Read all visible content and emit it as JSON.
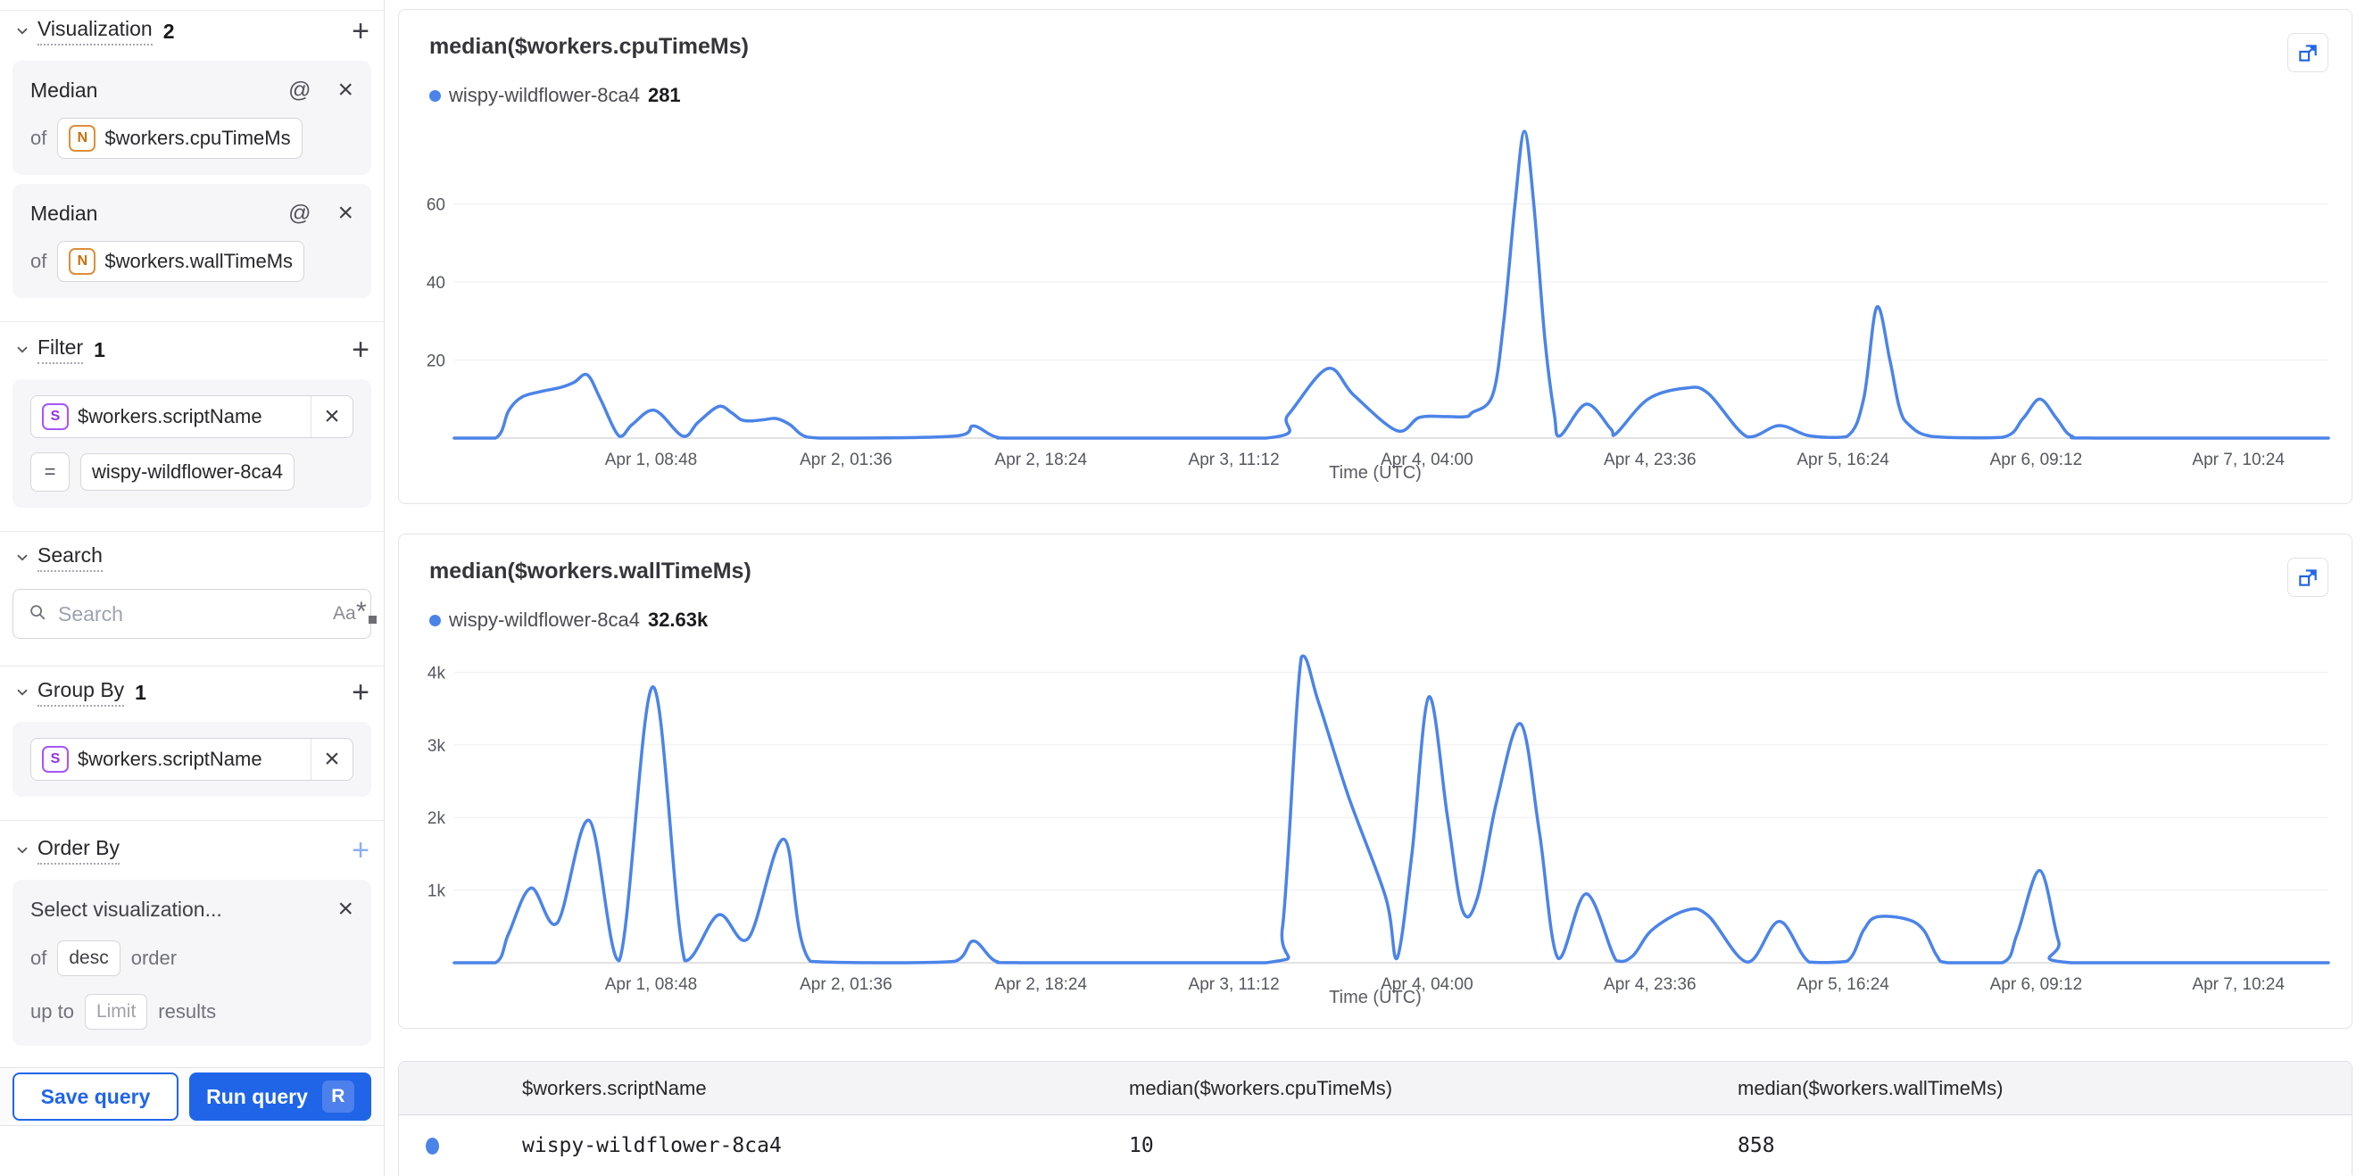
{
  "icons": {
    "plus": "+",
    "at": "@",
    "close": "×",
    "match_case": "Aa",
    "regex_star": "*"
  },
  "colors": {
    "accent_blue": "#2065e8",
    "series_blue": "#4b84e8"
  },
  "sidebar": {
    "visualization": {
      "title": "Visualization",
      "count": "2",
      "cards": [
        {
          "agg": "Median",
          "of": "of",
          "badge": "N",
          "field": "$workers.cpuTimeMs"
        },
        {
          "agg": "Median",
          "of": "of",
          "badge": "N",
          "field": "$workers.wallTimeMs"
        }
      ]
    },
    "filter": {
      "title": "Filter",
      "count": "1",
      "badge": "S",
      "field": "$workers.scriptName",
      "operator": "=",
      "value": "wispy-wildflower-8ca4"
    },
    "search": {
      "title": "Search",
      "placeholder": "Search"
    },
    "group_by": {
      "title": "Group By",
      "count": "1",
      "badge": "S",
      "field": "$workers.scriptName"
    },
    "order_by": {
      "title": "Order By",
      "placeholder": "Select visualization...",
      "of": "of",
      "direction": "desc",
      "order_word": "order",
      "up_to": "up to",
      "limit_placeholder": "Limit",
      "results_word": "results"
    },
    "footer": {
      "save": "Save query",
      "run": "Run query",
      "shortcut": "R"
    }
  },
  "chart_data": [
    {
      "type": "line",
      "title": "median($workers.cpuTimeMs)",
      "xlabel": "Time (UTC)",
      "legend": {
        "name": "wispy-wildflower-8ca4",
        "value": "281"
      },
      "color": "#4b84e8",
      "ylim": [
        0,
        80
      ],
      "y_ticks": [
        {
          "value": 20,
          "label": "20"
        },
        {
          "value": 40,
          "label": "40"
        },
        {
          "value": 60,
          "label": "60"
        }
      ],
      "x_ticks": [
        {
          "pos": 0.105,
          "label": "Apr 1, 08:48"
        },
        {
          "pos": 0.209,
          "label": "Apr 2, 01:36"
        },
        {
          "pos": 0.313,
          "label": "Apr 2, 18:24"
        },
        {
          "pos": 0.416,
          "label": "Apr 3, 11:12"
        },
        {
          "pos": 0.519,
          "label": "Apr 4, 04:00"
        },
        {
          "pos": 0.638,
          "label": "Apr 4, 23:36"
        },
        {
          "pos": 0.741,
          "label": "Apr 5, 16:24"
        },
        {
          "pos": 0.844,
          "label": "Apr 6, 09:12"
        },
        {
          "pos": 0.952,
          "label": "Apr 7, 10:24"
        }
      ],
      "points": [
        [
          0,
          0
        ],
        [
          0.022,
          0
        ],
        [
          0.029,
          7
        ],
        [
          0.036,
          10.5
        ],
        [
          0.046,
          11.9
        ],
        [
          0.057,
          13
        ],
        [
          0.064,
          14.3
        ],
        [
          0.071,
          16.2
        ],
        [
          0.078,
          10
        ],
        [
          0.088,
          0.5
        ],
        [
          0.095,
          3.5
        ],
        [
          0.107,
          7.1
        ],
        [
          0.122,
          0.5
        ],
        [
          0.13,
          4
        ],
        [
          0.141,
          8.1
        ],
        [
          0.148,
          6.5
        ],
        [
          0.153,
          4.7
        ],
        [
          0.158,
          4.4
        ],
        [
          0.165,
          4.7
        ],
        [
          0.172,
          5
        ],
        [
          0.179,
          3.5
        ],
        [
          0.188,
          0.3
        ],
        [
          0.206,
          0
        ],
        [
          0.267,
          0.5
        ],
        [
          0.277,
          3.1
        ],
        [
          0.289,
          0.3
        ],
        [
          0.305,
          0
        ],
        [
          0.433,
          0
        ],
        [
          0.445,
          6
        ],
        [
          0.466,
          17.8
        ],
        [
          0.48,
          11
        ],
        [
          0.503,
          1.9
        ],
        [
          0.515,
          5.3
        ],
        [
          0.529,
          5.5
        ],
        [
          0.54,
          5.5
        ],
        [
          0.543,
          6.5
        ],
        [
          0.554,
          11
        ],
        [
          0.56,
          30
        ],
        [
          0.566,
          60
        ],
        [
          0.571,
          78.6
        ],
        [
          0.576,
          60
        ],
        [
          0.582,
          25
        ],
        [
          0.587,
          6
        ],
        [
          0.59,
          0.6
        ],
        [
          0.604,
          8.7
        ],
        [
          0.617,
          2.4
        ],
        [
          0.62,
          1.2
        ],
        [
          0.637,
          10
        ],
        [
          0.657,
          12.8
        ],
        [
          0.669,
          11.5
        ],
        [
          0.69,
          0.3
        ],
        [
          0.707,
          3.2
        ],
        [
          0.723,
          0.6
        ],
        [
          0.743,
          0.4
        ],
        [
          0.752,
          10
        ],
        [
          0.759,
          33.5
        ],
        [
          0.766,
          20
        ],
        [
          0.771,
          8
        ],
        [
          0.776,
          3.5
        ],
        [
          0.789,
          0.4
        ],
        [
          0.826,
          0.2
        ],
        [
          0.837,
          5
        ],
        [
          0.846,
          10
        ],
        [
          0.855,
          5
        ],
        [
          0.863,
          0.5
        ],
        [
          0.877,
          0
        ],
        [
          1,
          0
        ]
      ]
    },
    {
      "type": "line",
      "title": "median($workers.wallTimeMs)",
      "xlabel": "Time (UTC)",
      "legend": {
        "name": "wispy-wildflower-8ca4",
        "value": "32.63k"
      },
      "color": "#4b84e8",
      "ylim": [
        0,
        4300
      ],
      "y_ticks": [
        {
          "value": 1000,
          "label": "1k"
        },
        {
          "value": 2000,
          "label": "2k"
        },
        {
          "value": 3000,
          "label": "3k"
        },
        {
          "value": 4000,
          "label": "4k"
        }
      ],
      "x_ticks": [
        {
          "pos": 0.105,
          "label": "Apr 1, 08:48"
        },
        {
          "pos": 0.209,
          "label": "Apr 2, 01:36"
        },
        {
          "pos": 0.313,
          "label": "Apr 2, 18:24"
        },
        {
          "pos": 0.416,
          "label": "Apr 3, 11:12"
        },
        {
          "pos": 0.519,
          "label": "Apr 4, 04:00"
        },
        {
          "pos": 0.638,
          "label": "Apr 4, 23:36"
        },
        {
          "pos": 0.741,
          "label": "Apr 5, 16:24"
        },
        {
          "pos": 0.844,
          "label": "Apr 6, 09:12"
        },
        {
          "pos": 0.952,
          "label": "Apr 7, 10:24"
        }
      ],
      "points": [
        [
          0,
          0
        ],
        [
          0.022,
          0
        ],
        [
          0.029,
          400
        ],
        [
          0.041,
          1030
        ],
        [
          0.055,
          550
        ],
        [
          0.072,
          1960
        ],
        [
          0.088,
          30
        ],
        [
          0.106,
          3800
        ],
        [
          0.123,
          30
        ],
        [
          0.141,
          660
        ],
        [
          0.157,
          340
        ],
        [
          0.176,
          1700
        ],
        [
          0.19,
          20
        ],
        [
          0.234,
          0
        ],
        [
          0.267,
          20
        ],
        [
          0.277,
          300
        ],
        [
          0.289,
          20
        ],
        [
          0.305,
          0
        ],
        [
          0.433,
          0
        ],
        [
          0.442,
          500
        ],
        [
          0.452,
          4210
        ],
        [
          0.461,
          3600
        ],
        [
          0.477,
          2300
        ],
        [
          0.497,
          900
        ],
        [
          0.503,
          60
        ],
        [
          0.511,
          1500
        ],
        [
          0.52,
          3660
        ],
        [
          0.53,
          2000
        ],
        [
          0.538,
          720
        ],
        [
          0.546,
          900
        ],
        [
          0.556,
          2200
        ],
        [
          0.569,
          3290
        ],
        [
          0.579,
          1800
        ],
        [
          0.589,
          60
        ],
        [
          0.604,
          950
        ],
        [
          0.62,
          30
        ],
        [
          0.629,
          100
        ],
        [
          0.639,
          450
        ],
        [
          0.657,
          720
        ],
        [
          0.669,
          650
        ],
        [
          0.69,
          10
        ],
        [
          0.707,
          570
        ],
        [
          0.723,
          10
        ],
        [
          0.743,
          20
        ],
        [
          0.752,
          450
        ],
        [
          0.759,
          630
        ],
        [
          0.775,
          600
        ],
        [
          0.784,
          450
        ],
        [
          0.791,
          100
        ],
        [
          0.797,
          0
        ],
        [
          0.826,
          0
        ],
        [
          0.834,
          400
        ],
        [
          0.846,
          1270
        ],
        [
          0.856,
          300
        ],
        [
          0.863,
          0
        ],
        [
          1,
          0
        ]
      ]
    }
  ],
  "table": {
    "columns": [
      "$workers.scriptName",
      "median($workers.cpuTimeMs)",
      "median($workers.wallTimeMs)"
    ],
    "rows": [
      {
        "name": "wispy-wildflower-8ca4",
        "cpu": "10",
        "wall": "858"
      }
    ]
  }
}
